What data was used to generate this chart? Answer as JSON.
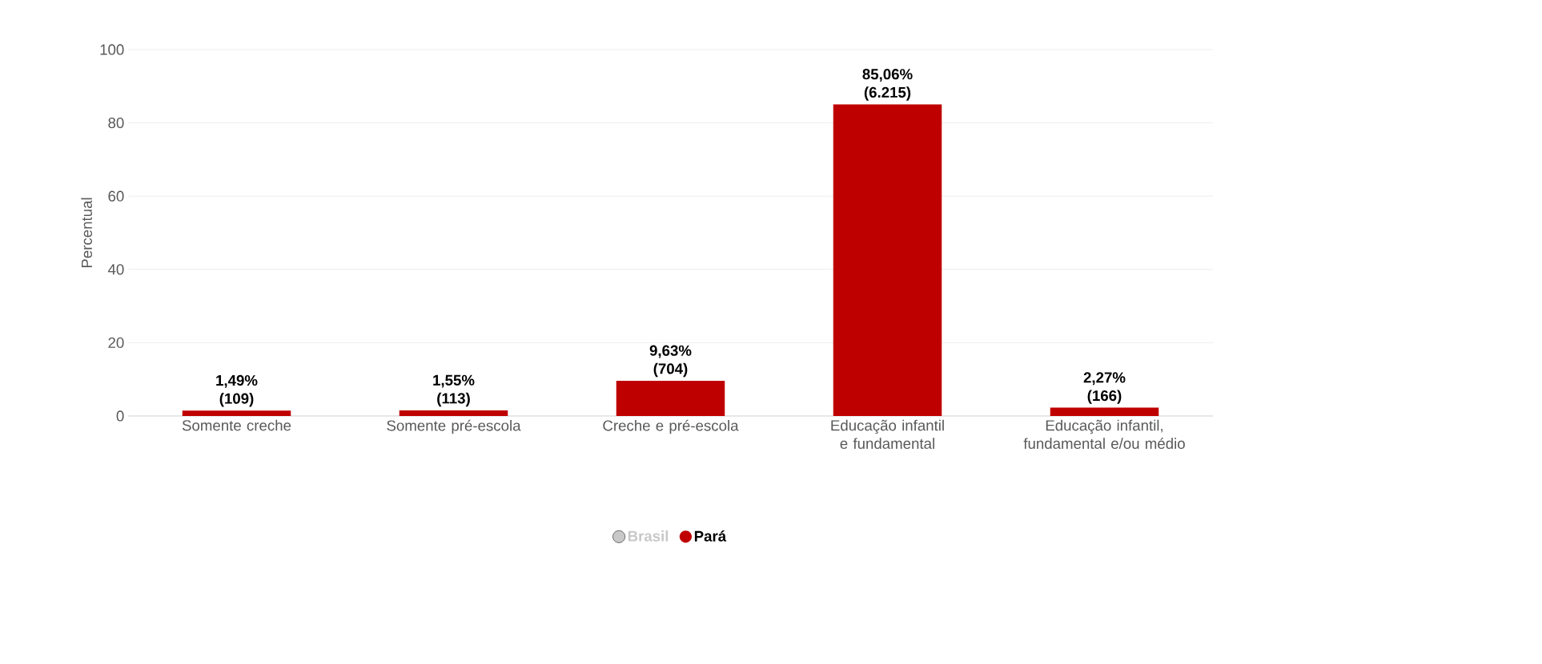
{
  "chart_data": {
    "type": "bar",
    "ylabel": "Percentual",
    "categories": [
      "Somente creche",
      "Somente pré-escola",
      "Creche e pré-escola",
      "Educação infantil e fundamental",
      "Educação infantil, fundamental e/ou médio"
    ],
    "series": [
      {
        "name": "Brasil",
        "color": "#c8c8c8",
        "values": [
          null,
          null,
          null,
          null,
          null
        ]
      },
      {
        "name": "Pará",
        "color": "#bf0000",
        "values": [
          1.49,
          1.55,
          9.63,
          85.06,
          2.27
        ],
        "value_labels": [
          "1,49% (109)",
          "1,55% (113)",
          "9,63% (704)",
          "85,06% (6.215)",
          "2,27% (166)"
        ]
      }
    ],
    "ylim": [
      0,
      100
    ],
    "yticks": [
      0,
      20,
      40,
      60,
      80,
      100
    ],
    "grid": "y",
    "legend": "bottom"
  }
}
